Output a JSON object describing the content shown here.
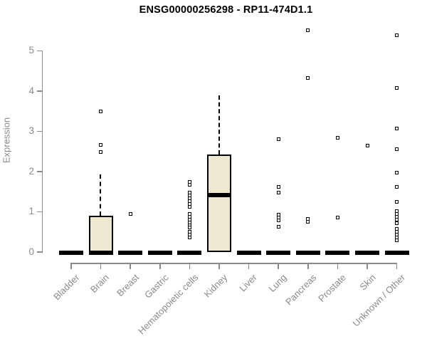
{
  "chart_data": {
    "type": "boxplot",
    "title": "ENSG00000256298 - RP11-474D1.1",
    "xlabel": "",
    "ylabel": "Expression",
    "ylim": [
      0,
      5.6
    ],
    "yticks": [
      0,
      1,
      2,
      3,
      4,
      5
    ],
    "grid": false,
    "marker_style": "open-square",
    "colors": {
      "box_fill": "#EEE8D1",
      "box_border": "#000000",
      "median": "#000000",
      "axis": "#8a8a8a",
      "tick_text": "#8a8a8a",
      "title_text": "#000000",
      "background": "#ffffff"
    },
    "categories": [
      "Bladder",
      "Brain",
      "Breast",
      "Gastric",
      "Hematopoietic cells",
      "Kidney",
      "Liver",
      "Lung",
      "Pancreas",
      "Prostate",
      "Skin",
      "Unknown / Other"
    ],
    "boxes": [
      {
        "category": "Bladder",
        "q1": 0,
        "median": 0,
        "q3": 0,
        "whisker_high": null,
        "outliers": []
      },
      {
        "category": "Brain",
        "q1": 0,
        "median": 0,
        "q3": 0.91,
        "whisker_high": 1.97,
        "outliers": [
          3.5,
          2.66,
          2.49
        ]
      },
      {
        "category": "Breast",
        "q1": 0,
        "median": 0,
        "q3": 0,
        "whisker_high": null,
        "outliers": [
          0.94
        ]
      },
      {
        "category": "Gastric",
        "q1": 0,
        "median": 0,
        "q3": 0,
        "whisker_high": null,
        "outliers": []
      },
      {
        "category": "Hematopoietic cells",
        "q1": 0,
        "median": 0,
        "q3": 0,
        "whisker_high": null,
        "outliers": [
          1.75,
          1.67,
          1.48,
          1.41,
          1.34,
          1.27,
          1.2,
          1.13,
          0.95,
          0.88,
          0.81,
          0.74,
          0.67,
          0.61,
          0.51,
          0.44,
          0.37
        ]
      },
      {
        "category": "Kidney",
        "q1": 0,
        "median": 1.43,
        "q3": 2.43,
        "whisker_high": 3.93,
        "outliers": []
      },
      {
        "category": "Liver",
        "q1": 0,
        "median": 0,
        "q3": 0,
        "whisker_high": null,
        "outliers": []
      },
      {
        "category": "Lung",
        "q1": 0,
        "median": 0,
        "q3": 0,
        "whisker_high": null,
        "outliers": [
          2.81,
          1.62,
          1.47,
          0.93,
          0.86,
          0.79,
          0.63
        ]
      },
      {
        "category": "Pancreas",
        "q1": 0,
        "median": 0,
        "q3": 0,
        "whisker_high": null,
        "outliers": [
          5.51,
          4.32,
          0.82,
          0.76
        ]
      },
      {
        "category": "Prostate",
        "q1": 0,
        "median": 0,
        "q3": 0,
        "whisker_high": null,
        "outliers": [
          2.84,
          0.86
        ]
      },
      {
        "category": "Skin",
        "q1": 0,
        "median": 0,
        "q3": 0,
        "whisker_high": null,
        "outliers": [
          2.65
        ]
      },
      {
        "category": "Unknown / Other",
        "q1": 0,
        "median": 0,
        "q3": 0,
        "whisker_high": null,
        "outliers": [
          5.38,
          4.07,
          3.06,
          2.56,
          1.98,
          1.62,
          1.25,
          1.01,
          0.94,
          0.87,
          0.8,
          0.72,
          0.57,
          0.5,
          0.43,
          0.36,
          0.29
        ]
      }
    ]
  }
}
